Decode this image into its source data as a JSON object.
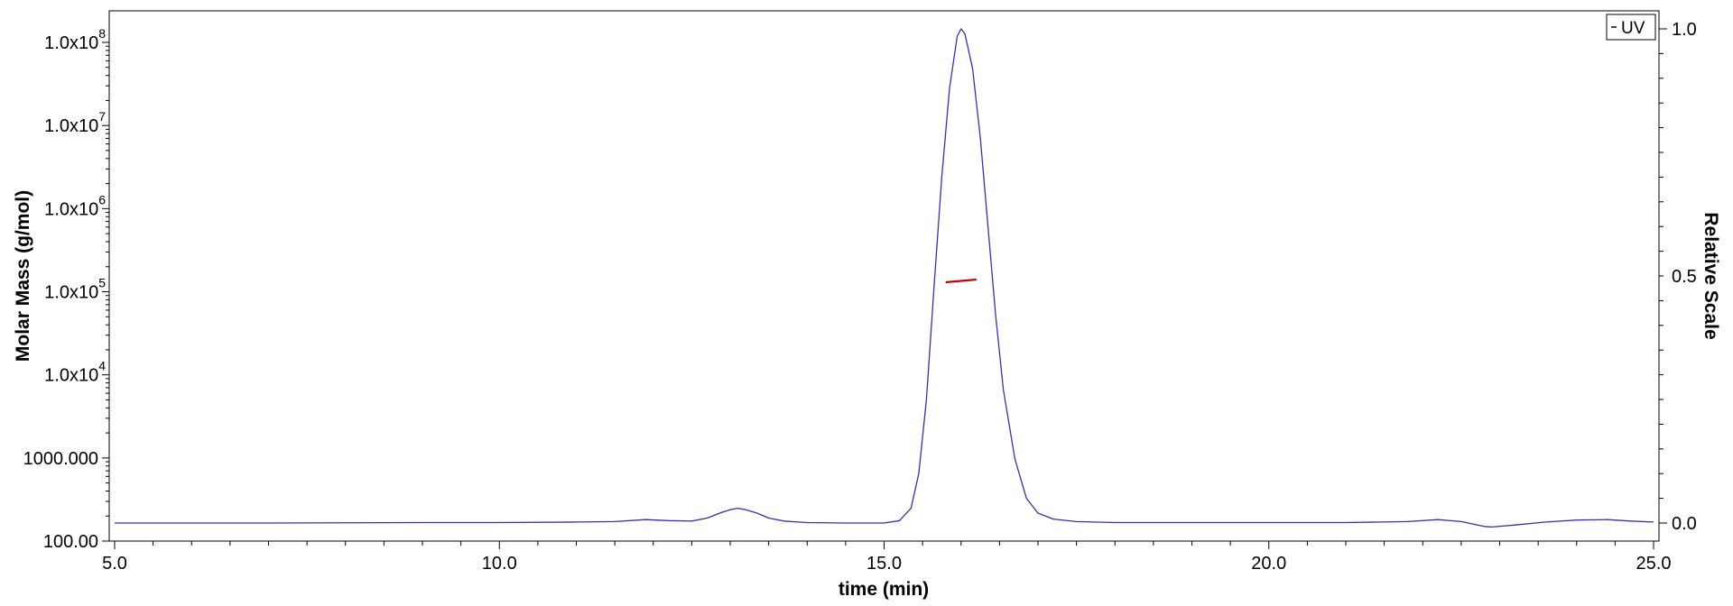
{
  "chart_data": {
    "type": "line",
    "xlabel": "time (min)",
    "ylabel_left": "Molar Mass (g/mol)",
    "ylabel_right": "Relative Scale",
    "xlim": [
      5.0,
      25.0
    ],
    "x_ticks": [
      "5.0",
      "10.0",
      "15.0",
      "20.0",
      "25.0"
    ],
    "y_left_scale": "log",
    "y_left_ticks": [
      {
        "base": "1.0x10",
        "exp": "8"
      },
      {
        "base": "1.0x10",
        "exp": "7"
      },
      {
        "base": "1.0x10",
        "exp": "6"
      },
      {
        "base": "1.0x10",
        "exp": "5"
      },
      {
        "base": "1.0x10",
        "exp": "4"
      },
      {
        "base": "1000.000",
        "exp": ""
      },
      {
        "base": "100.00",
        "exp": ""
      }
    ],
    "y_right_ticks": [
      "1.0",
      "0.5",
      "0.0"
    ],
    "y_right_lim": [
      0.0,
      1.0
    ],
    "legend": {
      "entries": [
        "UV"
      ],
      "position": "top-right"
    },
    "grid": false,
    "series": [
      {
        "name": "UV",
        "color": "#3333aa",
        "axis": "right",
        "x": [
          5.0,
          7.0,
          9.0,
          10.0,
          11.0,
          11.5,
          11.9,
          12.2,
          12.5,
          12.7,
          12.9,
          13.0,
          13.1,
          13.2,
          13.35,
          13.5,
          13.7,
          14.0,
          14.5,
          15.0,
          15.2,
          15.35,
          15.45,
          15.55,
          15.65,
          15.75,
          15.85,
          15.95,
          16.0,
          16.05,
          16.15,
          16.25,
          16.35,
          16.45,
          16.55,
          16.7,
          16.85,
          17.0,
          17.2,
          17.5,
          18.0,
          19.0,
          20.0,
          21.0,
          21.8,
          22.2,
          22.5,
          22.8,
          22.9,
          23.2,
          23.6,
          24.0,
          24.4,
          24.7,
          25.0
        ],
        "values": [
          0.0,
          0.0,
          0.001,
          0.001,
          0.002,
          0.003,
          0.007,
          0.005,
          0.004,
          0.01,
          0.022,
          0.027,
          0.03,
          0.027,
          0.02,
          0.01,
          0.004,
          0.001,
          0.0,
          0.0,
          0.005,
          0.03,
          0.1,
          0.25,
          0.48,
          0.7,
          0.88,
          0.985,
          1.0,
          0.99,
          0.92,
          0.78,
          0.6,
          0.42,
          0.27,
          0.13,
          0.05,
          0.02,
          0.008,
          0.003,
          0.001,
          0.001,
          0.001,
          0.001,
          0.003,
          0.007,
          0.003,
          -0.007,
          -0.008,
          -0.004,
          0.002,
          0.006,
          0.007,
          0.004,
          0.002
        ]
      },
      {
        "name": "",
        "color": "#cc0000",
        "axis": "left",
        "x": [
          15.8,
          16.2
        ],
        "values": [
          130000,
          140000
        ]
      }
    ]
  }
}
